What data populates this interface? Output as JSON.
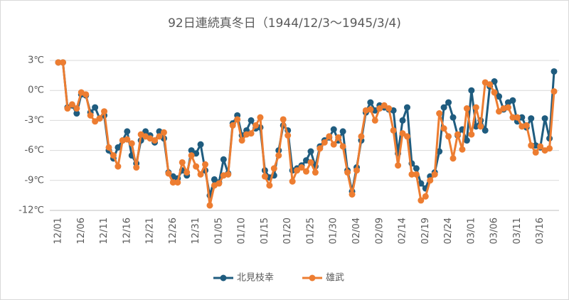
{
  "chart_data": {
    "type": "line",
    "title": "92日連続真冬日（1944/12/3～1945/3/4)",
    "categories": [
      "12/01",
      null,
      null,
      null,
      null,
      "12/06",
      null,
      null,
      null,
      null,
      "12/11",
      null,
      null,
      null,
      null,
      "12/16",
      null,
      null,
      null,
      null,
      "12/21",
      null,
      null,
      null,
      null,
      "12/26",
      null,
      null,
      null,
      null,
      "12/31",
      null,
      null,
      null,
      null,
      "01/05",
      null,
      null,
      null,
      null,
      "01/10",
      null,
      null,
      null,
      null,
      "01/15",
      null,
      null,
      null,
      null,
      "01/20",
      null,
      null,
      null,
      null,
      "01/25",
      null,
      null,
      null,
      null,
      "01/30",
      null,
      null,
      null,
      null,
      "02/04",
      null,
      null,
      null,
      null,
      "02/09",
      null,
      null,
      null,
      null,
      "02/14",
      null,
      null,
      null,
      null,
      "02/19",
      null,
      null,
      null,
      null,
      "02/24",
      null,
      null,
      null,
      null,
      "03/01",
      null,
      null,
      null,
      null,
      "03/06",
      null,
      null,
      null,
      null,
      "03/11",
      null,
      null,
      null,
      null,
      "03/16",
      null,
      null,
      null
    ],
    "series": [
      {
        "name": "北見枝幸",
        "color": "#1f5c7f",
        "values": [
          2.8,
          2.8,
          -1.7,
          -1.5,
          -2.3,
          -0.4,
          -0.5,
          -2.2,
          -1.7,
          -2.8,
          -2.5,
          -6.0,
          -6.8,
          -5.7,
          -5.0,
          -4.1,
          -6.5,
          -7.3,
          -5.0,
          -4.1,
          -4.5,
          -5.2,
          -4.1,
          -4.8,
          -8.2,
          -8.6,
          -8.8,
          -8.0,
          -8.5,
          -6.0,
          -6.3,
          -5.4,
          -8.0,
          -10.5,
          -8.9,
          -9.2,
          -6.9,
          -8.3,
          -3.3,
          -2.5,
          -4.5,
          -4.0,
          -3.0,
          -3.8,
          -3.7,
          -8.0,
          -8.7,
          -8.5,
          -6.0,
          -3.5,
          -4.0,
          -8.0,
          -7.8,
          -7.5,
          -7.0,
          -6.1,
          -7.6,
          -5.6,
          -5.0,
          -4.7,
          -3.9,
          -5.0,
          -4.1,
          -8.0,
          -10.1,
          -7.7,
          -5.0,
          -2.2,
          -1.2,
          -2.0,
          -1.5,
          -1.7,
          -1.9,
          -2.0,
          -6.3,
          -3.0,
          -1.7,
          -7.3,
          -7.8,
          -9.3,
          -9.8,
          -8.6,
          -8.2,
          -6.1,
          -1.7,
          -1.2,
          -2.7,
          -4.5,
          -3.9,
          -5.0,
          0.0,
          -3.6,
          -3.0,
          -4.0,
          0.4,
          0.9,
          -0.6,
          -1.9,
          -1.2,
          -1.0,
          -3.1,
          -2.7,
          -3.7,
          -2.8,
          -5.5,
          -5.7,
          -2.8,
          -4.8,
          1.9
        ]
      },
      {
        "name": "雄武",
        "color": "#ed7d31",
        "values": [
          2.8,
          2.8,
          -1.8,
          -1.4,
          -1.8,
          -0.2,
          -0.4,
          -2.5,
          -3.1,
          -2.8,
          -2.1,
          -5.7,
          -6.5,
          -7.6,
          -5.0,
          -4.9,
          -5.3,
          -7.7,
          -4.4,
          -4.6,
          -4.8,
          -5.0,
          -4.6,
          -4.2,
          -8.3,
          -9.2,
          -9.2,
          -7.2,
          -8.2,
          -6.5,
          -7.6,
          -8.4,
          -7.4,
          -11.5,
          -9.5,
          -9.3,
          -8.5,
          -8.4,
          -3.5,
          -2.9,
          -5.0,
          -4.4,
          -4.3,
          -3.5,
          -2.7,
          -8.6,
          -9.5,
          -7.8,
          -6.5,
          -2.9,
          -4.5,
          -9.1,
          -8.0,
          -7.7,
          -8.1,
          -7.2,
          -8.2,
          -5.8,
          -5.2,
          -4.6,
          -5.4,
          -4.7,
          -5.6,
          -8.2,
          -10.4,
          -8.0,
          -4.6,
          -2.0,
          -1.9,
          -3.0,
          -1.8,
          -1.5,
          -1.8,
          -4.0,
          -7.5,
          -4.3,
          -4.6,
          -8.4,
          -8.4,
          -11.0,
          -10.6,
          -9.0,
          -8.4,
          -2.3,
          -3.8,
          -4.6,
          -6.8,
          -4.4,
          -5.9,
          -1.8,
          -4.4,
          -1.7,
          -3.6,
          0.8,
          0.6,
          -0.2,
          -2.1,
          -1.8,
          -1.7,
          -2.7,
          -2.7,
          -3.6,
          -3.5,
          -5.5,
          -6.2,
          -5.6,
          -6.0,
          -5.8,
          -0.1
        ]
      }
    ],
    "ylim": [
      -12,
      3
    ],
    "yticks": [
      {
        "value": -12,
        "label": "-12℃"
      },
      {
        "value": -9,
        "label": "-9℃"
      },
      {
        "value": -6,
        "label": "-6℃"
      },
      {
        "value": -3,
        "label": "-3℃"
      },
      {
        "value": 0,
        "label": "0℃"
      },
      {
        "value": 3,
        "label": "3℃"
      }
    ],
    "grid": true,
    "legend": "bottom"
  }
}
